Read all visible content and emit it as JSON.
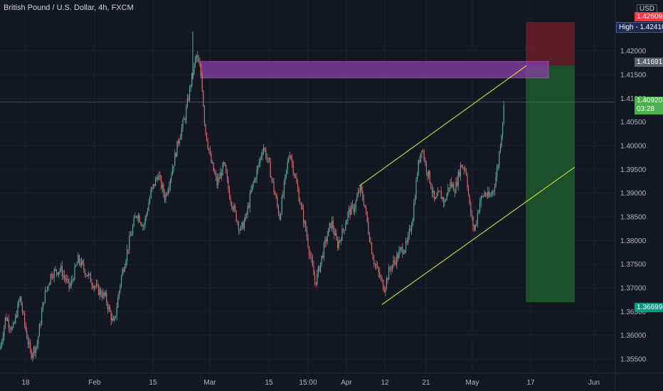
{
  "header": {
    "title": "British Pound / U.S. Dollar, 4h, FXCM"
  },
  "price_scale": {
    "currency": "USD",
    "high_label": "High",
    "high_value": "1.42410",
    "top_tag": "1.42609",
    "target_tag": "1.41691",
    "last_price": "1.40920",
    "countdown": "03:28",
    "stop_tag": "1.36699"
  },
  "colors": {
    "background": "#131722",
    "candle_up": "#5fa59a",
    "candle_down": "#cf6a6a",
    "channel": "#e6ea3f",
    "zone": "#8b3fa8",
    "profit": "#1e5a2c",
    "loss": "#6b1e27",
    "last_price": "#4caf50",
    "high_tag": "#1a2a54"
  },
  "chart_data": {
    "type": "candlestick",
    "title": "British Pound / U.S. Dollar, 4h, FXCM",
    "x_tick_labels": [
      "18",
      "Feb",
      "15",
      "Mar",
      "15",
      "15:00",
      "Apr",
      "12",
      "21",
      "May",
      "17",
      "Jun"
    ],
    "y_tick_labels": [
      "1.35500",
      "1.36000",
      "1.36500",
      "1.37000",
      "1.37500",
      "1.38000",
      "1.38500",
      "1.39000",
      "1.39500",
      "1.40000",
      "1.40500",
      "1.41000",
      "1.41500",
      "1.42000"
    ],
    "ylim": [
      1.352,
      1.4285
    ],
    "price_path": [
      [
        0,
        1.357
      ],
      [
        8,
        1.364
      ],
      [
        18,
        1.361
      ],
      [
        28,
        1.368
      ],
      [
        35,
        1.362
      ],
      [
        43,
        1.356
      ],
      [
        52,
        1.358
      ],
      [
        62,
        1.368
      ],
      [
        72,
        1.373
      ],
      [
        85,
        1.374
      ],
      [
        98,
        1.37
      ],
      [
        110,
        1.376
      ],
      [
        122,
        1.373
      ],
      [
        135,
        1.37
      ],
      [
        148,
        1.368
      ],
      [
        160,
        1.362
      ],
      [
        170,
        1.372
      ],
      [
        182,
        1.38
      ],
      [
        192,
        1.386
      ],
      [
        202,
        1.383
      ],
      [
        212,
        1.39
      ],
      [
        222,
        1.394
      ],
      [
        232,
        1.389
      ],
      [
        242,
        1.395
      ],
      [
        252,
        1.402
      ],
      [
        260,
        1.406
      ],
      [
        268,
        1.413
      ],
      [
        276,
        1.419
      ],
      [
        283,
        1.415
      ],
      [
        288,
        1.404
      ],
      [
        296,
        1.397
      ],
      [
        305,
        1.392
      ],
      [
        315,
        1.396
      ],
      [
        322,
        1.39
      ],
      [
        330,
        1.386
      ],
      [
        338,
        1.382
      ],
      [
        346,
        1.385
      ],
      [
        354,
        1.391
      ],
      [
        362,
        1.395
      ],
      [
        370,
        1.4
      ],
      [
        378,
        1.396
      ],
      [
        386,
        1.39
      ],
      [
        393,
        1.385
      ],
      [
        400,
        1.392
      ],
      [
        407,
        1.399
      ],
      [
        414,
        1.394
      ],
      [
        422,
        1.388
      ],
      [
        430,
        1.382
      ],
      [
        437,
        1.376
      ],
      [
        443,
        1.371
      ],
      [
        450,
        1.375
      ],
      [
        458,
        1.38
      ],
      [
        466,
        1.384
      ],
      [
        474,
        1.379
      ],
      [
        482,
        1.382
      ],
      [
        490,
        1.386
      ],
      [
        498,
        1.387
      ],
      [
        506,
        1.391
      ],
      [
        512,
        1.388
      ],
      [
        518,
        1.382
      ],
      [
        525,
        1.376
      ],
      [
        532,
        1.373
      ],
      [
        540,
        1.37
      ],
      [
        548,
        1.374
      ],
      [
        556,
        1.376
      ],
      [
        564,
        1.378
      ],
      [
        572,
        1.379
      ],
      [
        580,
        1.385
      ],
      [
        587,
        1.395
      ],
      [
        593,
        1.4
      ],
      [
        598,
        1.396
      ],
      [
        604,
        1.393
      ],
      [
        611,
        1.388
      ],
      [
        618,
        1.39
      ],
      [
        625,
        1.388
      ],
      [
        632,
        1.392
      ],
      [
        640,
        1.391
      ],
      [
        648,
        1.396
      ],
      [
        655,
        1.395
      ],
      [
        661,
        1.386
      ],
      [
        667,
        1.382
      ],
      [
        674,
        1.388
      ],
      [
        681,
        1.39
      ],
      [
        688,
        1.389
      ],
      [
        694,
        1.391
      ],
      [
        700,
        1.396
      ],
      [
        705,
        1.403
      ],
      [
        709,
        1.4092
      ]
    ],
    "high_value": 1.4241,
    "last_price": 1.4092,
    "channel_upper": [
      [
        505,
        1.3915
      ],
      [
        740,
        1.4169
      ]
    ],
    "channel_lower": [
      [
        537,
        1.3665
      ],
      [
        808,
        1.3955
      ]
    ],
    "supply_zone": {
      "x_start": 282,
      "x_end": 771,
      "y_top": 1.4178,
      "y_bottom": 1.4143
    },
    "position": {
      "x_start": 739,
      "x_end": 808,
      "stop_loss": 1.42609,
      "entry": 1.41691,
      "take_profit": 1.36699
    }
  }
}
